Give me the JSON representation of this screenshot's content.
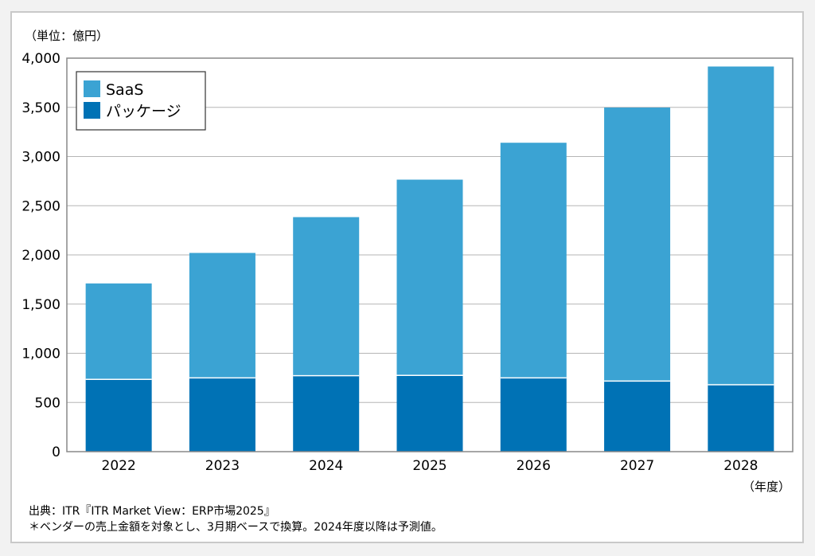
{
  "chart_data": {
    "type": "bar",
    "stacked": true,
    "categories": [
      "2022",
      "2023",
      "2024",
      "2025",
      "2026",
      "2027",
      "2028"
    ],
    "series": [
      {
        "name": "パッケージ",
        "color": "#0072b5",
        "values": [
          735,
          750,
          772,
          775,
          750,
          718,
          680
        ]
      },
      {
        "name": "SaaS",
        "color": "#3ba3d3",
        "values": [
          975,
          1270,
          1612,
          1990,
          2390,
          2780,
          3235
        ]
      }
    ],
    "ylim": [
      0,
      4000
    ],
    "yticks": [
      "0",
      "500",
      "1,000",
      "1,500",
      "2,000",
      "2,500",
      "3,000",
      "3,500",
      "4,000"
    ],
    "ylabel": "（単位：億円）",
    "xlabel": "（年度）",
    "grid": true,
    "legend_position": "top-left"
  },
  "notes": {
    "source": "出典：ITR『ITR Market View：ERP市場2025』",
    "footnote": "＊ベンダーの売上金額を対象とし、3月期ベースで換算。2024年度以降は予測値。"
  }
}
